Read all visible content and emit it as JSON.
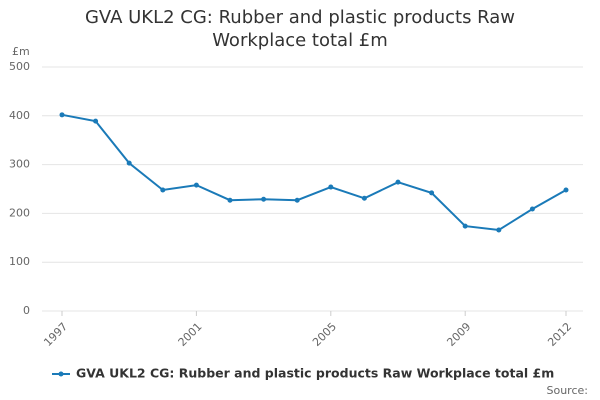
{
  "chart_data": {
    "type": "line",
    "title": "GVA UKL2 CG: Rubber and plastic products Raw Workplace total £m",
    "y_label": "£m",
    "source": "Source:",
    "x": [
      1997,
      1998,
      1999,
      2000,
      2001,
      2002,
      2003,
      2004,
      2005,
      2006,
      2007,
      2008,
      2009,
      2010,
      2011,
      2012
    ],
    "series": [
      {
        "name": "GVA UKL2 CG: Rubber and plastic products Raw Workplace total £m",
        "color": "#1a7ab8",
        "values": [
          402,
          389,
          303,
          248,
          258,
          227,
          229,
          227,
          254,
          231,
          264,
          242,
          174,
          166,
          209,
          248
        ]
      }
    ],
    "xlim": [
      1997,
      2012
    ],
    "xticks": [
      1997,
      2001,
      2005,
      2009,
      2012
    ],
    "ylim": [
      0,
      500
    ],
    "yticks": [
      0,
      100,
      200,
      300,
      400,
      500
    ],
    "grid": true,
    "legend": "bottom"
  }
}
